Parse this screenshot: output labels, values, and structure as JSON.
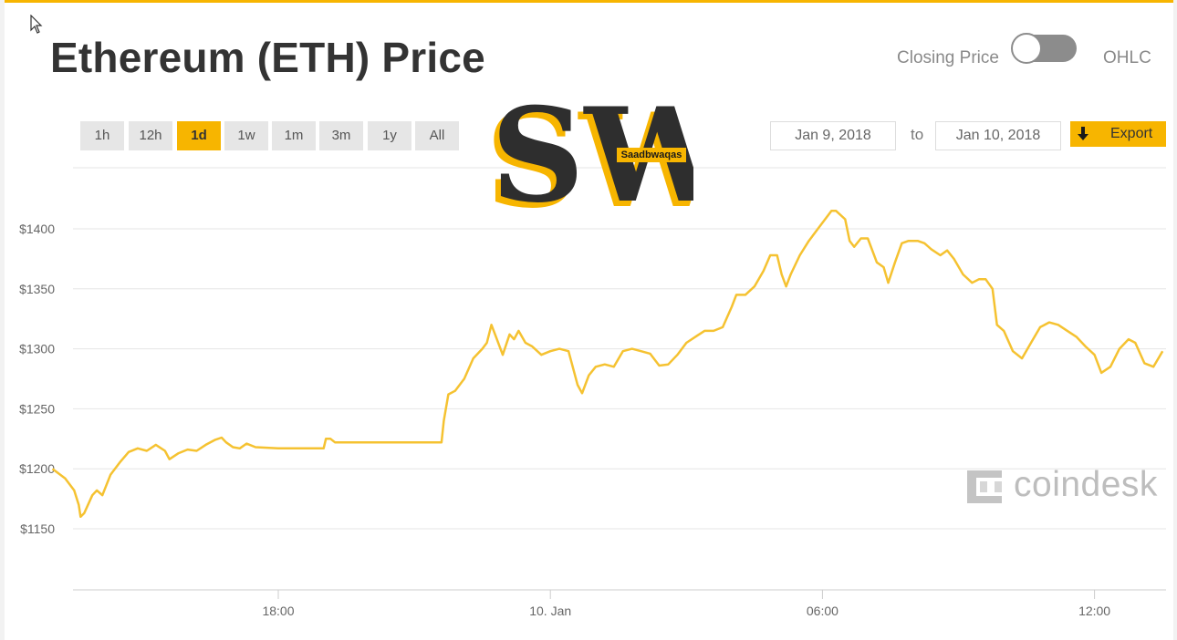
{
  "header": {
    "title": "Ethereum (ETH) Price",
    "closing_price_label": "Closing Price",
    "ohlc_label": "OHLC",
    "toggle_state": "closing-price"
  },
  "range_tabs": [
    {
      "label": "1h",
      "active": false
    },
    {
      "label": "12h",
      "active": false
    },
    {
      "label": "1d",
      "active": true
    },
    {
      "label": "1w",
      "active": false
    },
    {
      "label": "1m",
      "active": false
    },
    {
      "label": "3m",
      "active": false
    },
    {
      "label": "1y",
      "active": false
    },
    {
      "label": "All",
      "active": false
    }
  ],
  "date_range": {
    "from": "Jan 9, 2018",
    "to_label": "to",
    "to": "Jan 10, 2018",
    "export_label": "Export"
  },
  "watermark": {
    "letters": "SW",
    "tag": "Saadbwaqas"
  },
  "branding": {
    "coindesk_text": "coindesk"
  },
  "colors": {
    "accent": "#f7b500",
    "line": "#f5c231",
    "title": "#333333"
  },
  "chart_data": {
    "type": "line",
    "title": "",
    "xlabel": "",
    "ylabel": "",
    "y_tick_labels": [
      "$1400",
      "$1350",
      "$1300",
      "$1250",
      "$1200",
      "$1150"
    ],
    "y_ticks": [
      1400,
      1350,
      1300,
      1250,
      1200,
      1150
    ],
    "ylim": [
      1100,
      1450
    ],
    "x_unit": "hours",
    "x_range": [
      13.0,
      37.5
    ],
    "x_ticks": [
      {
        "x": 18,
        "label": "18:00"
      },
      {
        "x": 24,
        "label": "10. Jan"
      },
      {
        "x": 30,
        "label": "06:00"
      },
      {
        "x": 36,
        "label": "12:00"
      }
    ],
    "grid": true,
    "legend": "none",
    "series": [
      {
        "color": "#f5c231",
        "points": [
          [
            13.02,
            1200
          ],
          [
            13.3,
            1192
          ],
          [
            13.5,
            1182
          ],
          [
            13.6,
            1170
          ],
          [
            13.64,
            1160
          ],
          [
            13.72,
            1163
          ],
          [
            13.9,
            1178
          ],
          [
            14.0,
            1182
          ],
          [
            14.12,
            1178
          ],
          [
            14.3,
            1195
          ],
          [
            14.5,
            1205
          ],
          [
            14.7,
            1214
          ],
          [
            14.9,
            1217
          ],
          [
            15.1,
            1215
          ],
          [
            15.3,
            1220
          ],
          [
            15.5,
            1215
          ],
          [
            15.6,
            1208
          ],
          [
            15.8,
            1213
          ],
          [
            16.0,
            1216
          ],
          [
            16.2,
            1215
          ],
          [
            16.4,
            1220
          ],
          [
            16.6,
            1224
          ],
          [
            16.75,
            1226
          ],
          [
            16.85,
            1222
          ],
          [
            17.0,
            1218
          ],
          [
            17.15,
            1217
          ],
          [
            17.3,
            1221
          ],
          [
            17.5,
            1218
          ],
          [
            18.0,
            1217
          ],
          [
            18.5,
            1217
          ],
          [
            19.0,
            1217
          ],
          [
            19.05,
            1225
          ],
          [
            19.15,
            1225
          ],
          [
            19.25,
            1222
          ],
          [
            20.0,
            1222
          ],
          [
            21.0,
            1222
          ],
          [
            21.6,
            1222
          ],
          [
            21.65,
            1240
          ],
          [
            21.75,
            1262
          ],
          [
            21.9,
            1265
          ],
          [
            22.1,
            1275
          ],
          [
            22.3,
            1292
          ],
          [
            22.5,
            1300
          ],
          [
            22.6,
            1305
          ],
          [
            22.7,
            1320
          ],
          [
            22.8,
            1310
          ],
          [
            22.95,
            1295
          ],
          [
            23.1,
            1312
          ],
          [
            23.2,
            1308
          ],
          [
            23.3,
            1315
          ],
          [
            23.45,
            1305
          ],
          [
            23.6,
            1302
          ],
          [
            23.8,
            1295
          ],
          [
            24.0,
            1298
          ],
          [
            24.2,
            1300
          ],
          [
            24.4,
            1298
          ],
          [
            24.6,
            1270
          ],
          [
            24.7,
            1263
          ],
          [
            24.85,
            1278
          ],
          [
            25.0,
            1285
          ],
          [
            25.2,
            1287
          ],
          [
            25.4,
            1285
          ],
          [
            25.6,
            1298
          ],
          [
            25.8,
            1300
          ],
          [
            26.0,
            1298
          ],
          [
            26.2,
            1296
          ],
          [
            26.4,
            1286
          ],
          [
            26.6,
            1287
          ],
          [
            26.8,
            1295
          ],
          [
            27.0,
            1305
          ],
          [
            27.2,
            1310
          ],
          [
            27.4,
            1315
          ],
          [
            27.6,
            1315
          ],
          [
            27.8,
            1318
          ],
          [
            28.0,
            1335
          ],
          [
            28.1,
            1345
          ],
          [
            28.3,
            1345
          ],
          [
            28.5,
            1352
          ],
          [
            28.7,
            1365
          ],
          [
            28.85,
            1378
          ],
          [
            29.0,
            1378
          ],
          [
            29.1,
            1362
          ],
          [
            29.2,
            1352
          ],
          [
            29.3,
            1362
          ],
          [
            29.5,
            1378
          ],
          [
            29.7,
            1390
          ],
          [
            29.9,
            1400
          ],
          [
            30.0,
            1405
          ],
          [
            30.1,
            1410
          ],
          [
            30.2,
            1415
          ],
          [
            30.3,
            1415
          ],
          [
            30.5,
            1408
          ],
          [
            30.6,
            1390
          ],
          [
            30.7,
            1385
          ],
          [
            30.85,
            1392
          ],
          [
            31.0,
            1392
          ],
          [
            31.2,
            1372
          ],
          [
            31.35,
            1368
          ],
          [
            31.45,
            1355
          ],
          [
            31.6,
            1372
          ],
          [
            31.75,
            1388
          ],
          [
            31.9,
            1390
          ],
          [
            32.1,
            1390
          ],
          [
            32.25,
            1388
          ],
          [
            32.4,
            1383
          ],
          [
            32.6,
            1378
          ],
          [
            32.75,
            1382
          ],
          [
            32.9,
            1375
          ],
          [
            33.1,
            1362
          ],
          [
            33.3,
            1355
          ],
          [
            33.45,
            1358
          ],
          [
            33.6,
            1358
          ],
          [
            33.75,
            1350
          ],
          [
            33.85,
            1320
          ],
          [
            34.0,
            1315
          ],
          [
            34.2,
            1298
          ],
          [
            34.4,
            1292
          ],
          [
            34.6,
            1305
          ],
          [
            34.8,
            1318
          ],
          [
            35.0,
            1322
          ],
          [
            35.2,
            1320
          ],
          [
            35.4,
            1315
          ],
          [
            35.6,
            1310
          ],
          [
            35.8,
            1302
          ],
          [
            36.0,
            1295
          ],
          [
            36.15,
            1280
          ],
          [
            36.35,
            1285
          ],
          [
            36.55,
            1300
          ],
          [
            36.75,
            1308
          ],
          [
            36.9,
            1305
          ],
          [
            37.1,
            1288
          ],
          [
            37.3,
            1285
          ],
          [
            37.5,
            1298
          ]
        ]
      }
    ]
  }
}
